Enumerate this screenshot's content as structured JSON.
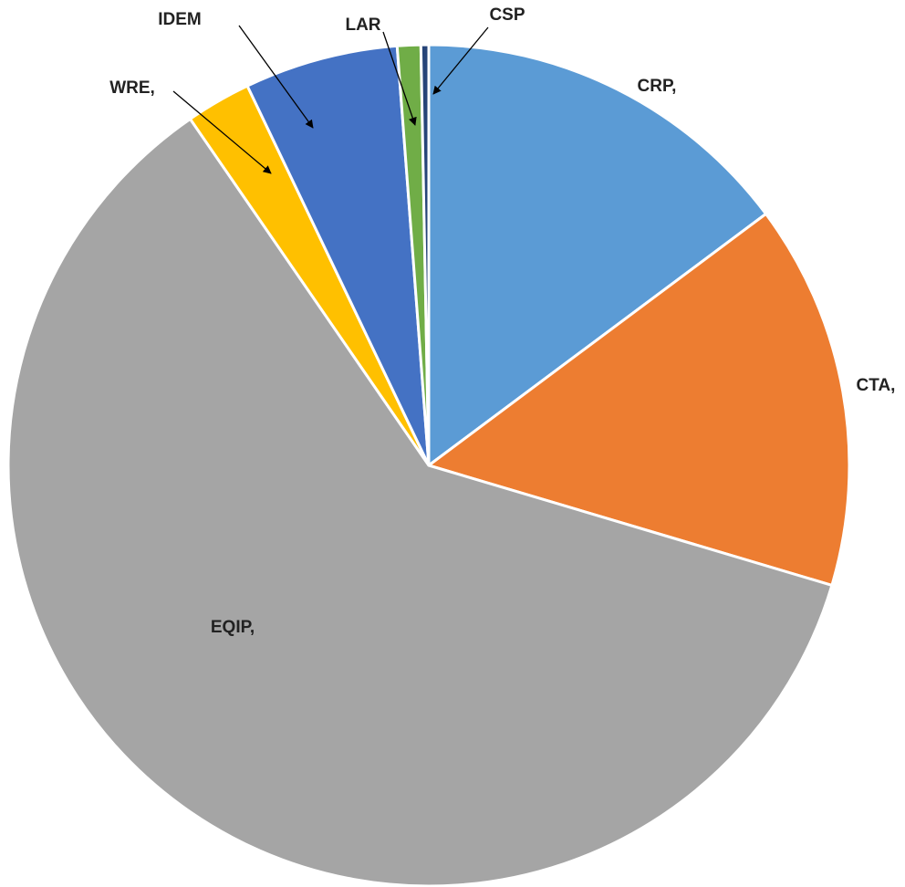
{
  "chart_data": {
    "type": "pie",
    "categories": [
      "CRP,",
      "CTA,",
      "EQIP,",
      "WRE,",
      "IDEM",
      "LAR",
      "CSP"
    ],
    "values": [
      14.8,
      14.8,
      60.8,
      2.5,
      5.9,
      0.9,
      0.3
    ],
    "colors": [
      "#5b9bd5",
      "#ed7d31",
      "#a5a5a5",
      "#ffc000",
      "#4472c4",
      "#70ad47",
      "#264478"
    ]
  }
}
